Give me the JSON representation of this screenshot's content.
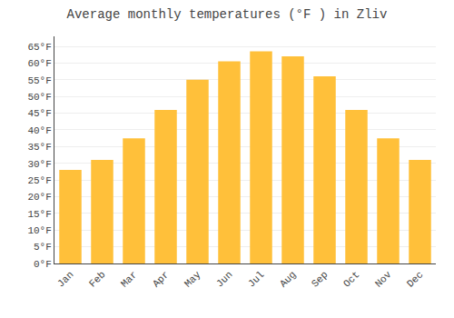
{
  "chart_data": {
    "type": "bar",
    "title": "Average monthly temperatures (°F ) in Zliv",
    "categories": [
      "Jan",
      "Feb",
      "Mar",
      "Apr",
      "May",
      "Jun",
      "Jul",
      "Aug",
      "Sep",
      "Oct",
      "Nov",
      "Dec"
    ],
    "values": [
      28,
      31,
      37.5,
      46,
      55,
      60.5,
      63.5,
      62,
      56,
      46,
      37.5,
      31
    ],
    "color": "#FFC03A",
    "ylim": [
      0,
      68
    ],
    "yticks": [
      {
        "value": 0,
        "label": "0°F"
      },
      {
        "value": 5,
        "label": "5°F"
      },
      {
        "value": 10,
        "label": "10°F"
      },
      {
        "value": 15,
        "label": "15°F"
      },
      {
        "value": 20,
        "label": "20°F"
      },
      {
        "value": 25,
        "label": "25°F"
      },
      {
        "value": 30,
        "label": "30°F"
      },
      {
        "value": 35,
        "label": "35°F"
      },
      {
        "value": 40,
        "label": "40°F"
      },
      {
        "value": 45,
        "label": "45°F"
      },
      {
        "value": 50,
        "label": "50°F"
      },
      {
        "value": 55,
        "label": "55°F"
      },
      {
        "value": 60,
        "label": "60°F"
      },
      {
        "value": 65,
        "label": "65°F"
      }
    ],
    "grid": true
  }
}
